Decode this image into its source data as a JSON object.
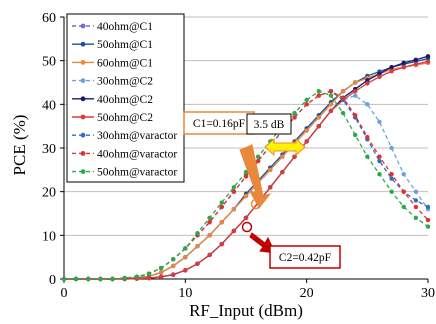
{
  "chart_data": {
    "type": "line",
    "xlabel": "RF_Input (dBm)",
    "ylabel": "PCE (%)",
    "xlim": [
      0,
      30
    ],
    "ylim": [
      0,
      60
    ],
    "xticks": [
      0,
      10,
      20,
      30
    ],
    "yticks": [
      0,
      10,
      20,
      30,
      40,
      50,
      60
    ],
    "grid": "horizontal",
    "legend_position": "top-left",
    "x": [
      0,
      1,
      2,
      3,
      4,
      5,
      6,
      7,
      8,
      9,
      10,
      11,
      12,
      13,
      14,
      15,
      16,
      17,
      18,
      19,
      20,
      21,
      22,
      23,
      24,
      25,
      26,
      27,
      28,
      29,
      30
    ],
    "series": [
      {
        "name": "40ohm@C1",
        "color": "#7B68C8",
        "dash": "4,3",
        "marker": "circle",
        "values": [
          0,
          0,
          0,
          0,
          0,
          0.1,
          0.3,
          0.6,
          1.5,
          3.0,
          5.0,
          7.5,
          10,
          13,
          16,
          19,
          22,
          25,
          28,
          31,
          34,
          37,
          40,
          43,
          45,
          46,
          47,
          48,
          48.5,
          49,
          49.5
        ]
      },
      {
        "name": "50ohm@C1",
        "color": "#1F4E9A",
        "dash": "none",
        "marker": "circle",
        "values": [
          0,
          0,
          0,
          0,
          0,
          0.1,
          0.3,
          0.6,
          1.5,
          3.0,
          5.0,
          7.5,
          10,
          13,
          16,
          19.5,
          22.5,
          25.5,
          28.5,
          31.5,
          34.5,
          37.5,
          40.5,
          43,
          45,
          46.5,
          47.5,
          48.5,
          49.2,
          49.8,
          50.5
        ]
      },
      {
        "name": "60ohm@C1",
        "color": "#E8883A",
        "dash": "none",
        "marker": "circle",
        "values": [
          0,
          0,
          0,
          0,
          0,
          0.1,
          0.3,
          0.6,
          1.5,
          3.0,
          5.0,
          7.5,
          10,
          13,
          16,
          19,
          22,
          25,
          28,
          31,
          34,
          37,
          40,
          43,
          45,
          46,
          47,
          48,
          48.5,
          49,
          49.5
        ]
      },
      {
        "name": "30ohm@C2",
        "color": "#6AA0E0",
        "dash": "4,3",
        "marker": "circle",
        "values": [
          0,
          0,
          0,
          0,
          0,
          0,
          0.1,
          0.2,
          0.5,
          1.0,
          2.0,
          3.5,
          5.5,
          8,
          11,
          14,
          17.5,
          21,
          24.5,
          28,
          31.5,
          35,
          38.5,
          41,
          42,
          40,
          36,
          30,
          24,
          20,
          16
        ]
      },
      {
        "name": "40ohm@C2",
        "color": "#1A1A6E",
        "dash": "none",
        "marker": "circle",
        "values": [
          0,
          0,
          0,
          0,
          0,
          0,
          0.1,
          0.2,
          0.5,
          1.0,
          2.0,
          3.5,
          5.5,
          8,
          11,
          14,
          17.5,
          21,
          24.5,
          28,
          31.5,
          35,
          38.5,
          41.5,
          43.5,
          45.5,
          47,
          48.5,
          49.5,
          50.2,
          51
        ]
      },
      {
        "name": "50ohm@C2",
        "color": "#D93A3A",
        "dash": "none",
        "marker": "circle",
        "values": [
          0,
          0,
          0,
          0,
          0,
          0,
          0.1,
          0.2,
          0.5,
          1.0,
          2.0,
          3.5,
          5.5,
          8,
          11,
          14,
          17.5,
          21,
          24.5,
          28,
          31.5,
          35,
          38.5,
          41,
          43,
          44.8,
          46.3,
          47.6,
          48.5,
          49.2,
          49.8
        ]
      },
      {
        "name": "30ohm@varactor",
        "color": "#2E6FC0",
        "dash": "4,3",
        "marker": "circle",
        "values": [
          0,
          0,
          0,
          0,
          0,
          0.2,
          0.5,
          1.2,
          2.5,
          4.5,
          7,
          10,
          13,
          16.5,
          20,
          23.5,
          27,
          30.5,
          34,
          37,
          40,
          42,
          43,
          41,
          37,
          32,
          27,
          23,
          20,
          18,
          16.5
        ]
      },
      {
        "name": "40ohm@varactor",
        "color": "#E03030",
        "dash": "4,3",
        "marker": "circle",
        "values": [
          0,
          0,
          0,
          0,
          0,
          0.2,
          0.5,
          1.2,
          2.5,
          4.5,
          7,
          10,
          13,
          16.5,
          20,
          23.5,
          27,
          30.5,
          34,
          37,
          40,
          42,
          43,
          41.5,
          37.5,
          32.5,
          28,
          24,
          20,
          16.5,
          13.5
        ]
      },
      {
        "name": "50ohm@varactor",
        "color": "#2CA84A",
        "dash": "4,3",
        "marker": "circle",
        "values": [
          0,
          0,
          0,
          0,
          0,
          0.2,
          0.5,
          1.2,
          2.5,
          4.5,
          7,
          10.5,
          14,
          17.5,
          21,
          24.5,
          28,
          31.5,
          35,
          38,
          41,
          43,
          42,
          38,
          33,
          28,
          24,
          20,
          16.5,
          14,
          12
        ]
      }
    ],
    "annotations": {
      "c1_label": "C1=0.16pF",
      "c2_label": "C2=0.42pF",
      "db_label": "3.5 dB"
    }
  }
}
